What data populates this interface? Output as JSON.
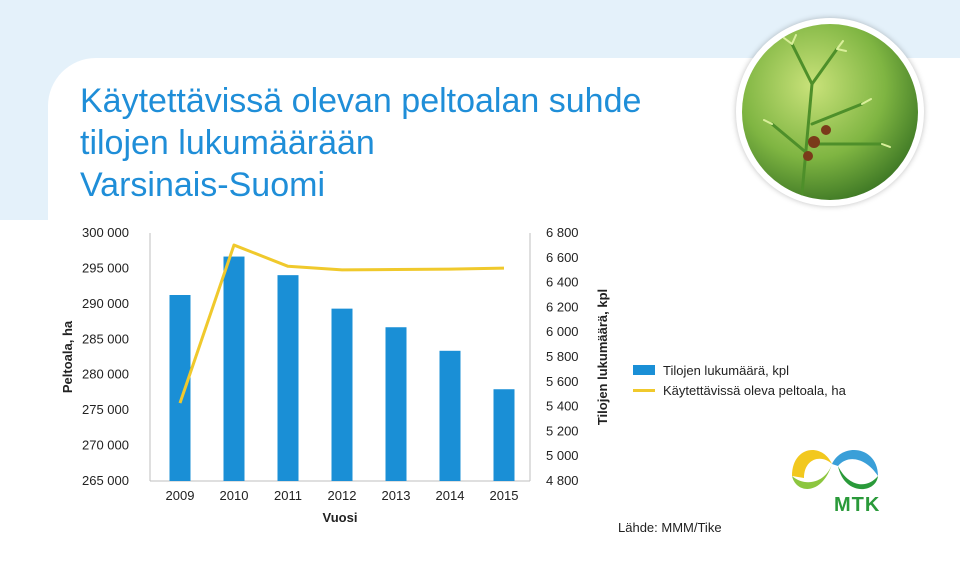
{
  "header": {
    "title_lines": [
      "Käytettävissä olevan peltoalan suhde",
      "tilojen lukumäärään",
      "Varsinais-Suomi"
    ]
  },
  "chart_data": {
    "type": "bar+line",
    "categories": [
      "2009",
      "2010",
      "2011",
      "2012",
      "2013",
      "2014",
      "2015"
    ],
    "xlabel": "Vuosi",
    "y_left_label": "Peltoala, ha",
    "y_right_label": "Tilojen lukumäärä, kpl",
    "y_left_range": [
      265000,
      300000
    ],
    "y_left_ticks": [
      "265 000",
      "270 000",
      "275 000",
      "280 000",
      "285 000",
      "290 000",
      "295 000",
      "300 000"
    ],
    "y_right_range": [
      4800,
      6800
    ],
    "y_right_ticks": [
      "4 800",
      "5 000",
      "5 200",
      "5 400",
      "5 600",
      "5 800",
      "6 000",
      "6 200",
      "6 400",
      "6 600",
      "6 800"
    ],
    "series": [
      {
        "name": "Tilojen lukumäärä, kpl",
        "kind": "bar",
        "axis": "right",
        "color": "#1a8fd6",
        "values": [
          6300,
          6610,
          6460,
          6190,
          6040,
          5850,
          5540
        ]
      },
      {
        "name": "Käytettävissä oleva peltoala, ha",
        "kind": "line",
        "axis": "left",
        "color": "#f0c92c",
        "values": [
          276000,
          298300,
          295300,
          294800,
          294850,
          294900,
          295050
        ]
      }
    ],
    "legend_position": "right",
    "grid": false
  },
  "source": "Lähde: MMM/Tike",
  "logo": {
    "text": "MTK",
    "color": "#2a9a3a"
  }
}
